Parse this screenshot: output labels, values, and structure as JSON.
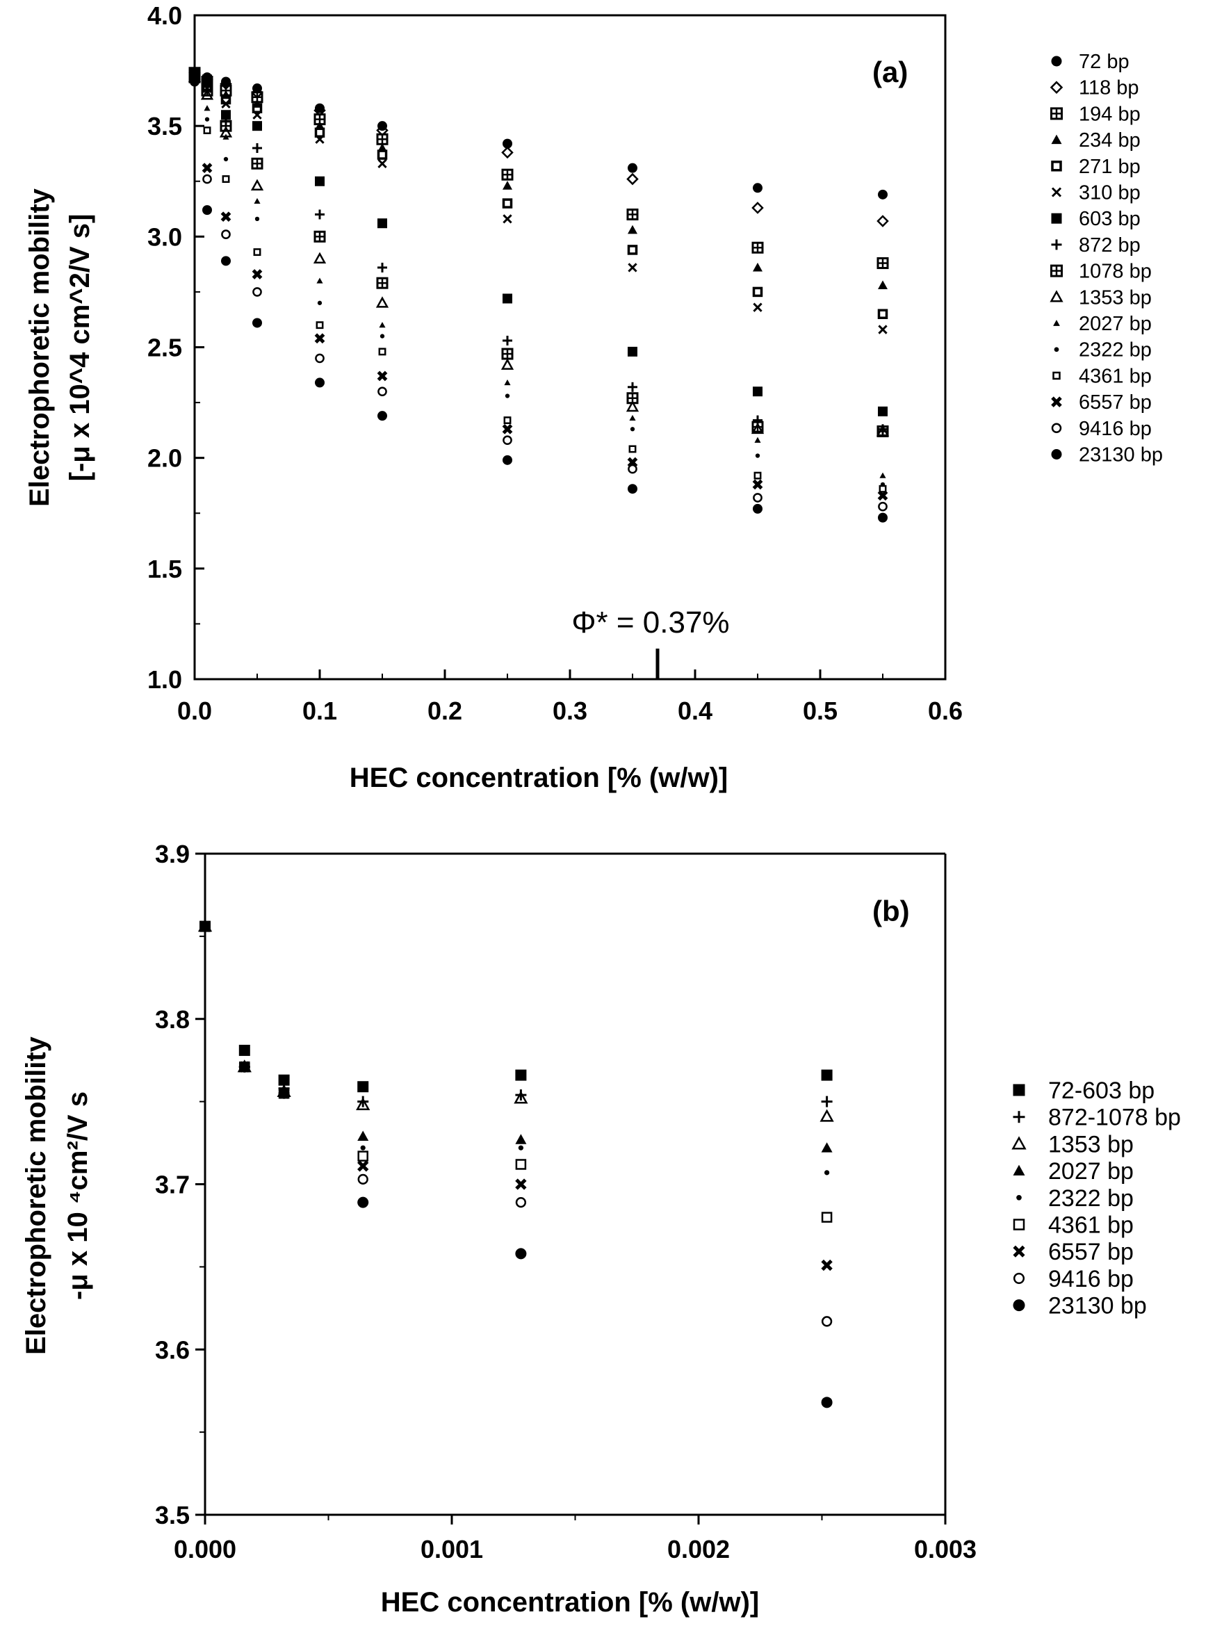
{
  "chart_data": [
    {
      "type": "scatter",
      "panel_label": "(a)",
      "xlabel": "HEC  concentration  [% (w/w)]",
      "ylabel_line1": "Electrophoretic  mobility",
      "ylabel_line2": "[-μ x 10^4 cm^2/V s]",
      "xlim": [
        0,
        0.6
      ],
      "ylim": [
        1.0,
        4.0
      ],
      "x_ticks": [
        "0.0",
        "0.1",
        "0.2",
        "0.3",
        "0.4",
        "0.5",
        "0.6"
      ],
      "y_ticks": [
        "1.0",
        "1.5",
        "2.0",
        "2.5",
        "3.0",
        "3.5",
        "4.0"
      ],
      "annotation": {
        "text": "Φ* = 0.37%",
        "x": 0.37
      },
      "legend_position": "right",
      "x": [
        0,
        0.01,
        0.025,
        0.05,
        0.1,
        0.15,
        0.25,
        0.35,
        0.45,
        0.55
      ],
      "series": [
        {
          "name": "72 bp",
          "marker": "filled-circle",
          "values": [
            3.74,
            3.72,
            3.7,
            3.67,
            3.58,
            3.5,
            3.42,
            3.31,
            3.22,
            3.19
          ]
        },
        {
          "name": "118 bp",
          "marker": "open-diamond",
          "values": [
            3.74,
            3.71,
            3.69,
            3.65,
            3.57,
            3.48,
            3.38,
            3.26,
            3.13,
            3.07
          ]
        },
        {
          "name": "194 bp",
          "marker": "boxed-square",
          "values": [
            3.74,
            3.7,
            3.66,
            3.63,
            3.53,
            3.44,
            3.28,
            3.1,
            2.95,
            2.88
          ]
        },
        {
          "name": "234 bp",
          "marker": "filled-triangle",
          "values": [
            3.74,
            3.69,
            3.64,
            3.6,
            3.5,
            3.4,
            3.23,
            3.03,
            2.86,
            2.78
          ]
        },
        {
          "name": "271 bp",
          "marker": "open-square-thick",
          "values": [
            3.74,
            3.68,
            3.62,
            3.58,
            3.47,
            3.37,
            3.15,
            2.94,
            2.75,
            2.65
          ]
        },
        {
          "name": "310 bp",
          "marker": "x",
          "values": [
            3.73,
            3.67,
            3.6,
            3.55,
            3.44,
            3.33,
            3.08,
            2.86,
            2.68,
            2.58
          ]
        },
        {
          "name": "603 bp",
          "marker": "filled-square",
          "values": [
            3.74,
            3.71,
            3.55,
            3.5,
            3.25,
            3.06,
            2.72,
            2.48,
            2.3,
            2.21
          ]
        },
        {
          "name": "872 bp",
          "marker": "plus",
          "values": [
            3.73,
            3.68,
            3.52,
            3.4,
            3.1,
            2.86,
            2.53,
            2.32,
            2.17,
            2.13
          ]
        },
        {
          "name": "1078 bp",
          "marker": "boxed-square",
          "values": [
            3.72,
            3.66,
            3.5,
            3.33,
            3.0,
            2.79,
            2.47,
            2.27,
            2.14,
            2.12
          ]
        },
        {
          "name": "1353 bp",
          "marker": "open-triangle",
          "values": [
            3.72,
            3.64,
            3.47,
            3.23,
            2.9,
            2.7,
            2.42,
            2.23,
            2.13,
            2.12
          ]
        },
        {
          "name": "2027 bp",
          "marker": "small-triangle",
          "values": [
            3.72,
            3.58,
            3.45,
            3.16,
            2.8,
            2.6,
            2.34,
            2.18,
            2.08,
            1.92
          ]
        },
        {
          "name": "2322 bp",
          "marker": "small-dot",
          "values": [
            3.71,
            3.53,
            3.35,
            3.08,
            2.7,
            2.55,
            2.28,
            2.13,
            2.01,
            1.88
          ]
        },
        {
          "name": "4361 bp",
          "marker": "small-square",
          "values": [
            3.71,
            3.48,
            3.26,
            2.93,
            2.6,
            2.48,
            2.17,
            2.04,
            1.92,
            1.86
          ]
        },
        {
          "name": "6557 bp",
          "marker": "bold-x",
          "values": [
            3.71,
            3.31,
            3.09,
            2.83,
            2.54,
            2.37,
            2.13,
            1.98,
            1.88,
            1.83
          ]
        },
        {
          "name": "9416 bp",
          "marker": "open-circle",
          "values": [
            3.7,
            3.26,
            3.01,
            2.75,
            2.45,
            2.3,
            2.08,
            1.95,
            1.82,
            1.78
          ]
        },
        {
          "name": "23130 bp",
          "marker": "filled-circle",
          "values": [
            3.7,
            3.12,
            2.89,
            2.61,
            2.34,
            2.19,
            1.99,
            1.86,
            1.77,
            1.73
          ]
        }
      ]
    },
    {
      "type": "scatter",
      "panel_label": "(b)",
      "xlabel": "HEC  concentration  [%  (w/w)]",
      "ylabel_line1": "Electrophoretic mobility",
      "ylabel_line2": "-μ x 10 ⁴cm²/V s",
      "xlim": [
        0,
        0.003
      ],
      "ylim": [
        3.5,
        3.9
      ],
      "x_ticks": [
        "0.000",
        "0.001",
        "0.002",
        "0.003"
      ],
      "y_ticks": [
        "3.5",
        "3.6",
        "3.7",
        "3.8",
        "3.9"
      ],
      "legend_position": "right",
      "x": [
        0.0,
        0.00016,
        0.00032,
        0.00064,
        0.00128,
        0.00252
      ],
      "series": [
        {
          "name": "72-603 bp",
          "marker": "filled-square",
          "values": [
            3.856,
            3.781,
            3.763,
            3.759,
            3.766,
            3.766
          ]
        },
        {
          "name": "872-1078 bp",
          "marker": "plus",
          "values": [
            3.856,
            3.771,
            3.758,
            3.75,
            3.754,
            3.75
          ]
        },
        {
          "name": "1353 bp",
          "marker": "open-triangle",
          "values": [
            3.856,
            3.771,
            3.756,
            3.748,
            3.752,
            3.741
          ]
        },
        {
          "name": "2027 bp",
          "marker": "filled-triangle",
          "values": [
            3.856,
            3.771,
            3.755,
            3.729,
            3.727,
            3.722
          ]
        },
        {
          "name": "2322 bp",
          "marker": "small-dot",
          "values": [
            3.856,
            3.771,
            3.755,
            3.722,
            3.722,
            3.707
          ]
        },
        {
          "name": "4361 bp",
          "marker": "open-square",
          "values": [
            3.856,
            3.771,
            3.755,
            3.717,
            3.712,
            3.68
          ]
        },
        {
          "name": "6557 bp",
          "marker": "bold-x",
          "values": [
            3.856,
            3.771,
            3.755,
            3.711,
            3.7,
            3.651
          ]
        },
        {
          "name": "9416 bp",
          "marker": "open-circle",
          "values": [
            3.856,
            3.771,
            3.755,
            3.703,
            3.689,
            3.617
          ]
        },
        {
          "name": "23130 bp",
          "marker": "filled-circle",
          "values": [
            3.856,
            3.771,
            3.755,
            3.689,
            3.658,
            3.568
          ]
        }
      ]
    }
  ]
}
